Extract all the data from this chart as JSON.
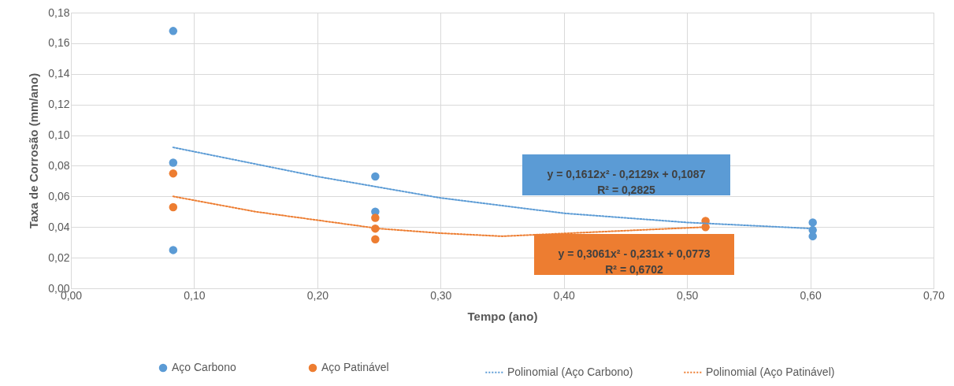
{
  "chart_data": {
    "type": "scatter",
    "xlabel": "Tempo (ano)",
    "ylabel": "Taxa de Corrosão (mm/ano)",
    "xlim": [
      0,
      0.7
    ],
    "ylim": [
      0,
      0.18
    ],
    "xticks": [
      {
        "value": 0,
        "label": "0,00"
      },
      {
        "value": 0.1,
        "label": "0,10"
      },
      {
        "value": 0.2,
        "label": "0,20"
      },
      {
        "value": 0.3,
        "label": "0,30"
      },
      {
        "value": 0.4,
        "label": "0,40"
      },
      {
        "value": 0.5,
        "label": "0,50"
      },
      {
        "value": 0.6,
        "label": "0,60"
      },
      {
        "value": 0.7,
        "label": "0,70"
      }
    ],
    "yticks": [
      {
        "value": 0,
        "label": "0,00"
      },
      {
        "value": 0.02,
        "label": "0,02"
      },
      {
        "value": 0.04,
        "label": "0,04"
      },
      {
        "value": 0.06,
        "label": "0,06"
      },
      {
        "value": 0.08,
        "label": "0,08"
      },
      {
        "value": 0.1,
        "label": "0,10"
      },
      {
        "value": 0.12,
        "label": "0,12"
      },
      {
        "value": 0.14,
        "label": "0,14"
      },
      {
        "value": 0.16,
        "label": "0,16"
      },
      {
        "value": 0.18,
        "label": "0,18"
      }
    ],
    "grid": true,
    "legend": "bottom",
    "series": [
      {
        "name": "Aço Carbono",
        "marker": "circle",
        "color": "#5b9bd5",
        "x": [
          0.083,
          0.083,
          0.083,
          0.247,
          0.247,
          0.602,
          0.602,
          0.602
        ],
        "values": [
          0.168,
          0.082,
          0.025,
          0.073,
          0.05,
          0.043,
          0.038,
          0.034
        ]
      },
      {
        "name": "Aço Patinável",
        "marker": "circle",
        "color": "#ed7d31",
        "x": [
          0.083,
          0.083,
          0.247,
          0.247,
          0.247,
          0.515,
          0.515
        ],
        "values": [
          0.075,
          0.053,
          0.046,
          0.039,
          0.032,
          0.044,
          0.04
        ]
      },
      {
        "name": "Polinomial (Aço Carbono)",
        "type": "line",
        "line_style": "dotted",
        "color": "#5b9bd5",
        "x": [
          0.083,
          0.2,
          0.3,
          0.4,
          0.5,
          0.602
        ],
        "values": [
          0.092,
          0.073,
          0.059,
          0.049,
          0.043,
          0.039
        ]
      },
      {
        "name": "Polinomial (Aço Patinável)",
        "type": "line",
        "line_style": "dotted",
        "color": "#ed7d31",
        "x": [
          0.083,
          0.15,
          0.25,
          0.3,
          0.35,
          0.515
        ],
        "values": [
          0.06,
          0.05,
          0.039,
          0.036,
          0.034,
          0.04
        ]
      }
    ],
    "annotations": [
      "y = 0,1612x² - 0,2129x + 0,1087\nR² = 0,2825",
      "y = 0,3061x² - 0,231x + 0,0773\nR² = 0,6702"
    ]
  }
}
